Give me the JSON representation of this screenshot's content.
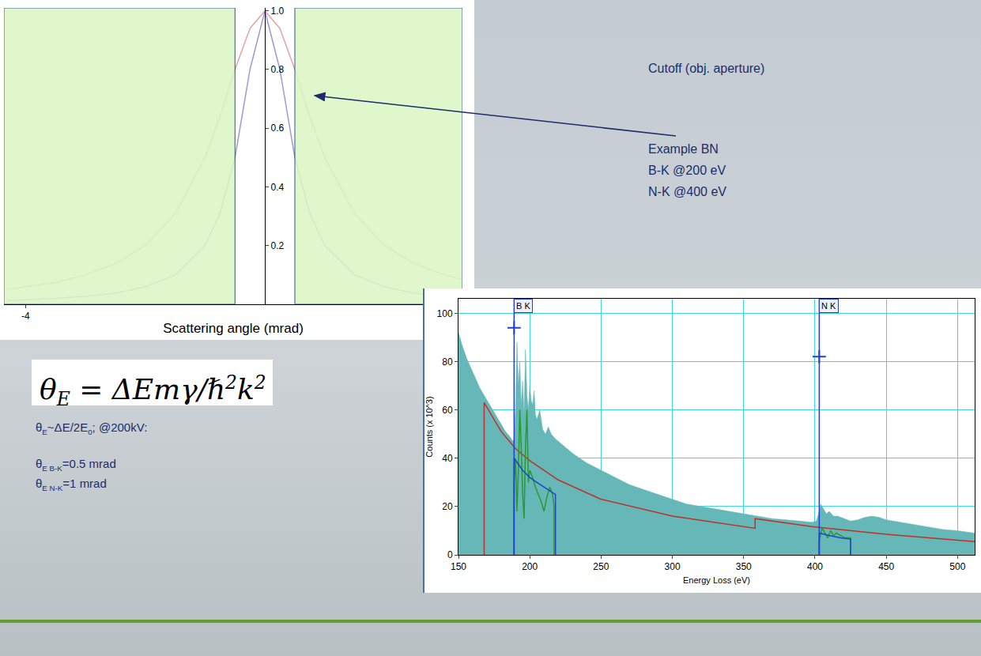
{
  "chart_data": [
    {
      "type": "line",
      "xlabel": "Scattering angle (mrad)",
      "xlim": [
        -4.36,
        3.3
      ],
      "xticks": [
        -4
      ],
      "ylim": [
        0,
        1.01
      ],
      "yticks": [
        0.2,
        0.4,
        0.6,
        0.8,
        {
          "value": 1,
          "label": "1.0"
        }
      ],
      "cutoff": [
        -0.5,
        0.5
      ],
      "series": [
        {
          "color": "#e3a3ab",
          "x": [
            -4.3,
            -4,
            -3.5,
            -3,
            -2.5,
            -2,
            -1.5,
            -1,
            -0.75,
            -0.5,
            -0.25,
            0,
            0.25,
            0.5,
            0.75,
            1,
            1.5,
            2,
            2.5,
            3,
            3.3
          ],
          "values": [
            0.051,
            0.059,
            0.075,
            0.1,
            0.138,
            0.2,
            0.308,
            0.5,
            0.64,
            0.8,
            0.94,
            1,
            0.94,
            0.8,
            0.64,
            0.5,
            0.308,
            0.2,
            0.138,
            0.1,
            0.084
          ]
        },
        {
          "color": "#9a9ad6",
          "x": [
            -4.3,
            -4,
            -3.5,
            -3,
            -2.5,
            -2,
            -1.5,
            -1,
            -0.75,
            -0.5,
            -0.25,
            0,
            0.25,
            0.5,
            0.75,
            1,
            1.5,
            2,
            2.5,
            3,
            3.3
          ],
          "values": [
            0.013,
            0.015,
            0.02,
            0.027,
            0.038,
            0.059,
            0.1,
            0.2,
            0.31,
            0.5,
            0.8,
            1,
            0.8,
            0.5,
            0.31,
            0.2,
            0.1,
            0.059,
            0.038,
            0.027,
            0.022
          ]
        }
      ]
    },
    {
      "type": "line",
      "xlabel": "Energy Loss (eV)",
      "ylabel": "Counts (x 10^3)",
      "xlim": [
        150,
        512
      ],
      "xticks": [
        150,
        200,
        250,
        300,
        350,
        400,
        450,
        500
      ],
      "ylim": [
        0,
        106
      ],
      "yticks": [
        0,
        20,
        40,
        60,
        80,
        100
      ],
      "grid": true,
      "series": [
        {
          "type": "area",
          "color": "#66b8b8",
          "x": [
            150,
            153,
            156,
            159,
            162,
            165,
            168,
            171,
            174,
            177,
            180,
            183,
            186,
            188,
            189,
            190,
            191,
            192,
            193,
            194,
            195,
            196,
            197,
            198,
            199,
            200,
            201,
            202,
            203,
            204,
            205,
            207,
            209,
            211,
            213,
            215,
            218,
            222,
            226,
            230,
            235,
            240,
            250,
            260,
            270,
            280,
            290,
            300,
            310,
            320,
            330,
            340,
            350,
            360,
            370,
            380,
            390,
            398,
            401,
            403,
            404,
            405,
            406,
            408,
            410,
            413,
            416,
            420,
            425,
            430,
            435,
            440,
            445,
            450,
            460,
            470,
            480,
            490,
            500,
            512
          ],
          "values": [
            92,
            86,
            81,
            77,
            73,
            69,
            66,
            63,
            60,
            57,
            54,
            51,
            49,
            47,
            48,
            60,
            88,
            70,
            80,
            62,
            72,
            58,
            85,
            66,
            60,
            70,
            64,
            62,
            68,
            58,
            56,
            60,
            52,
            50,
            53,
            50,
            48,
            46,
            44,
            42,
            40,
            38,
            35,
            32,
            29,
            27,
            25,
            23,
            21,
            20,
            19,
            18,
            17,
            16,
            15,
            14.5,
            14,
            13.5,
            14,
            18,
            21,
            20,
            19,
            17,
            18,
            16,
            16,
            15,
            14,
            14.5,
            15.5,
            16,
            15.5,
            14.5,
            13.5,
            12.5,
            11.5,
            10.5,
            10,
            9
          ]
        },
        {
          "type": "line",
          "color": "#c0302a",
          "x": [
            168,
            168,
            175,
            180,
            190,
            200,
            220,
            250,
            300,
            358,
            358,
            400,
            450,
            500,
            512
          ],
          "values": [
            0,
            63,
            56,
            51,
            44,
            39,
            31,
            23,
            16,
            11,
            15,
            11.5,
            8.5,
            6,
            5.5
          ]
        },
        {
          "type": "line",
          "color": "#2a9a2a",
          "x": [
            189,
            189,
            190,
            191,
            192,
            193,
            194,
            195,
            196,
            197,
            198,
            199,
            200,
            202,
            204,
            206,
            208,
            210,
            212,
            214,
            216,
            217,
            217
          ],
          "values": [
            0,
            30,
            40,
            18,
            35,
            60,
            45,
            25,
            15,
            45,
            60,
            30,
            35,
            32,
            28,
            25,
            22,
            18,
            24,
            28,
            25,
            20,
            0
          ]
        },
        {
          "type": "line",
          "color": "#2040d0",
          "x": [
            189,
            189,
            195,
            200,
            205,
            210,
            215,
            218,
            218
          ],
          "values": [
            0,
            40,
            35,
            32,
            30,
            28,
            26,
            25,
            0
          ]
        },
        {
          "type": "line",
          "color": "#2a9a2a",
          "x": [
            403,
            403,
            405,
            407,
            409,
            411,
            413,
            415,
            418,
            421,
            424,
            425,
            425
          ],
          "values": [
            0,
            6,
            11,
            9,
            7,
            10,
            8,
            9,
            8,
            7,
            7,
            7,
            0
          ]
        },
        {
          "type": "line",
          "color": "#2040d0",
          "x": [
            403,
            403,
            410,
            418,
            425,
            425
          ],
          "values": [
            0,
            9,
            8,
            7,
            6.5,
            0
          ]
        }
      ],
      "edges": [
        {
          "label": "B K",
          "x": 189,
          "y": 94
        },
        {
          "label": "N K",
          "x": 403,
          "y": 82
        }
      ]
    }
  ],
  "slide": {
    "callout": "Cutoff (obj. aperture)",
    "example": [
      "Example BN",
      "B-K @200 eV",
      "N-K @400 eV"
    ],
    "formula": [
      {
        "t": "θ"
      },
      {
        "sub": "E"
      },
      {
        "t": " = ΔEmγ/ℏ"
      },
      {
        "sup": "2"
      },
      {
        "t": "k"
      },
      {
        "sup": "2"
      }
    ],
    "approx": [
      {
        "t": "θ"
      },
      {
        "sub": "E"
      },
      {
        "t": "~ΔE/2E"
      },
      {
        "sub": "0"
      },
      {
        "t": "; @200kV:"
      }
    ],
    "angles": [
      [
        {
          "t": "θ"
        },
        {
          "sub": "E B-K"
        },
        {
          "t": "=0.5 mrad"
        }
      ],
      [
        {
          "t": "θ"
        },
        {
          "sub": "E N-K"
        },
        {
          "t": "=1 mrad"
        }
      ]
    ]
  }
}
